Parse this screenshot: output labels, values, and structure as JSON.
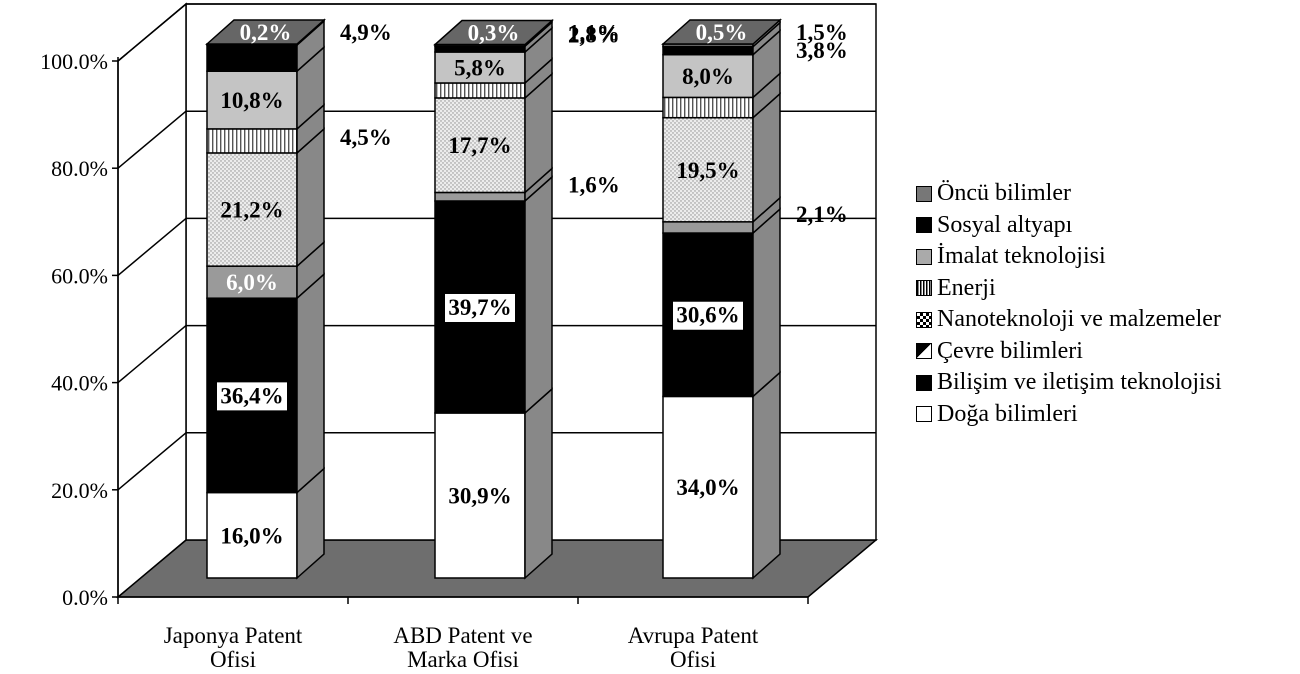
{
  "chart_data": {
    "type": "bar",
    "stacked": true,
    "three_d": true,
    "title": "",
    "xlabel": "",
    "ylabel": "",
    "ylim": [
      0,
      100
    ],
    "yticks": [
      "0.0%",
      "20.0%",
      "40.0%",
      "60.0%",
      "80.0%",
      "100.0%"
    ],
    "categories": [
      "Japonya Patent Ofisi",
      "ABD Patent ve Marka Ofisi",
      "Avrupa Patent Ofisi"
    ],
    "category_label_lines": [
      [
        "Japonya Patent",
        "Ofisi"
      ],
      [
        "ABD Patent ve",
        "Marka Ofisi"
      ],
      [
        "Avrupa Patent",
        "Ofisi"
      ]
    ],
    "series": [
      {
        "name": "Doğa bilimleri",
        "values": [
          16.0,
          30.9,
          34.0
        ],
        "labels": [
          "16,0%",
          "30,9%",
          "34,0%"
        ],
        "color": "#ffffff"
      },
      {
        "name": "Bilişim ve iletişim teknolojisi",
        "values": [
          36.4,
          39.7,
          30.6
        ],
        "labels": [
          "36,4%",
          "39,7%",
          "30,6%"
        ],
        "color": "#000000"
      },
      {
        "name": "Çevre bilimleri",
        "values": [
          6.0,
          1.6,
          2.1
        ],
        "labels": [
          "6,0%",
          "1,6%",
          "2,1%"
        ],
        "color": "#9a9a9a"
      },
      {
        "name": "Nanoteknoloji ve malzemeler",
        "values": [
          21.2,
          17.7,
          19.5
        ],
        "labels": [
          "21,2%",
          "17,7%",
          "19,5%"
        ],
        "color": "#e2e2e2"
      },
      {
        "name": "Enerji",
        "values": [
          4.5,
          2.8,
          3.8
        ],
        "labels": [
          "4,5%",
          "2,8%",
          "3,8%"
        ],
        "color": "#f2f2f2"
      },
      {
        "name": "İmalat teknolojisi",
        "values": [
          10.8,
          5.8,
          8.0
        ],
        "labels": [
          "10,8%",
          "5,8%",
          "8,0%"
        ],
        "color": "#c4c4c4"
      },
      {
        "name": "Sosyal altyapı",
        "values": [
          4.9,
          1.1,
          1.5
        ],
        "labels": [
          "4,9%",
          "1,1%",
          "1,5%"
        ],
        "color": "#000000"
      },
      {
        "name": "Öncü bilimler",
        "values": [
          0.2,
          0.3,
          0.5
        ],
        "labels": [
          "0,2%",
          "0,3%",
          "0,5%"
        ],
        "color": "#6e6e6e"
      }
    ],
    "legend": {
      "position": "right",
      "order": [
        "Öncü bilimler",
        "Sosyal altyapı",
        "İmalat teknolojisi",
        "Enerji",
        "Nanoteknoloji ve malzemeler",
        "Çevre bilimleri",
        "Bilişim ve iletişim teknolojisi",
        "Doğa bilimleri"
      ]
    },
    "grid": true,
    "colors": {
      "floor": "#6e6e6e",
      "bar_side": "#888888",
      "bar_top": "#666666",
      "grid": "#000000"
    }
  }
}
